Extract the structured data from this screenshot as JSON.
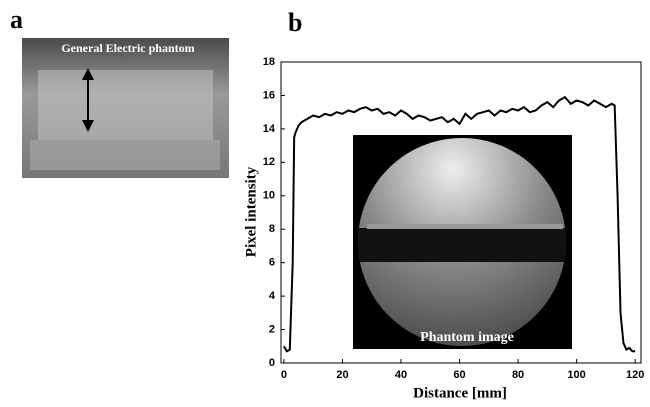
{
  "panel_a": {
    "label": "a",
    "caption": "General Electric phantom"
  },
  "chart_data": {
    "type": "line",
    "label": "b",
    "annotation": "Phantom image",
    "x_label": "Distance [mm]",
    "y_label": "Pixel intensity",
    "xlim": [
      -1,
      122
    ],
    "ylim": [
      0,
      18
    ],
    "xticks": [
      0,
      20,
      40,
      60,
      80,
      100,
      120
    ],
    "yticks": [
      0,
      2,
      4,
      6,
      8,
      10,
      12,
      14,
      16,
      18
    ],
    "x": [
      0,
      1,
      2,
      3,
      3.5,
      4,
      5,
      6,
      8,
      10,
      12,
      14,
      16,
      18,
      20,
      22,
      24,
      26,
      28,
      30,
      32,
      34,
      36,
      38,
      40,
      42,
      44,
      46,
      48,
      50,
      52,
      54,
      56,
      58,
      60,
      62,
      64,
      66,
      68,
      70,
      72,
      74,
      76,
      78,
      80,
      82,
      84,
      86,
      88,
      90,
      92,
      94,
      96,
      98,
      100,
      102,
      104,
      106,
      108,
      110,
      112,
      113,
      114,
      115,
      116,
      117,
      118,
      119,
      120
    ],
    "series": [
      {
        "color": "#000000",
        "values": [
          1.0,
          0.7,
          0.8,
          6,
          13.5,
          13.8,
          14.2,
          14.4,
          14.6,
          14.8,
          14.7,
          14.9,
          14.8,
          15.0,
          14.9,
          15.1,
          15.0,
          15.2,
          15.3,
          15.1,
          15.2,
          14.9,
          15.0,
          14.8,
          15.1,
          14.9,
          14.6,
          14.8,
          14.7,
          14.5,
          14.6,
          14.7,
          14.4,
          14.6,
          14.3,
          14.9,
          14.6,
          14.9,
          15.0,
          15.1,
          14.8,
          15.1,
          15.0,
          15.2,
          15.1,
          15.3,
          15.0,
          15.1,
          15.4,
          15.6,
          15.3,
          15.7,
          15.9,
          15.5,
          15.7,
          15.6,
          15.4,
          15.7,
          15.5,
          15.3,
          15.5,
          15.4,
          10,
          3,
          1.2,
          0.8,
          0.9,
          0.7,
          0.7
        ]
      }
    ]
  }
}
